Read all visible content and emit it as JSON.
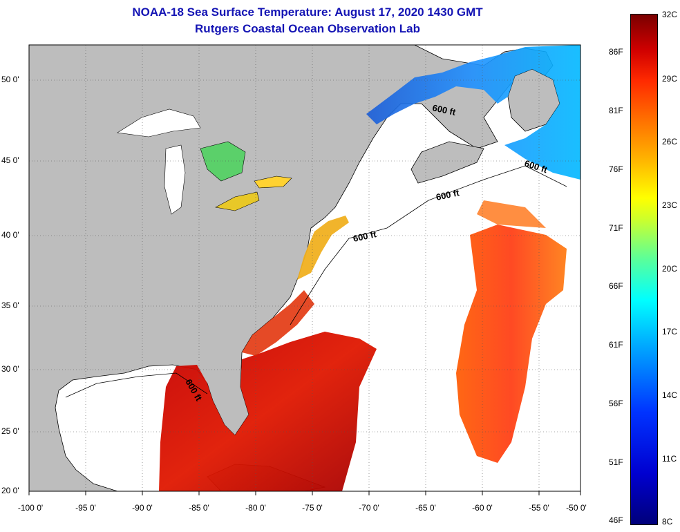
{
  "header": {
    "title": "NOAA-18 Sea Surface Temperature:  August 17, 2020 1430 GMT",
    "subtitle": "Rutgers Coastal Ocean Observation Lab"
  },
  "map": {
    "lon_range": [
      -100,
      -50
    ],
    "lat_range": [
      20,
      52.5
    ],
    "grid": "dotted",
    "lon_ticks": [
      "-100 0'",
      "-95 0'",
      "-90 0'",
      "-85 0'",
      "-80 0'",
      "-75 0'",
      "-70 0'",
      "-65 0'",
      "-60 0'",
      "-55 0'",
      "-50 0'"
    ],
    "lat_ticks": [
      "20 0'",
      "25 0'",
      "30 0'",
      "35 0'",
      "40 0'",
      "45 0'",
      "50 0'"
    ],
    "contour_labels": [
      "600 ft",
      "600 ft",
      "600 ft",
      "600 ft",
      "600 ft"
    ],
    "colors": {
      "land": "#bdbdbd",
      "no_data": "#ffffff"
    }
  },
  "colorbar": {
    "celsius": [
      "32C",
      "29C",
      "26C",
      "23C",
      "20C",
      "17C",
      "14C",
      "11C",
      "8C"
    ],
    "fahrenheit": [
      "86F",
      "81F",
      "76F",
      "71F",
      "66F",
      "61F",
      "56F",
      "51F",
      "46F"
    ],
    "range_c": [
      8,
      32
    ]
  }
}
